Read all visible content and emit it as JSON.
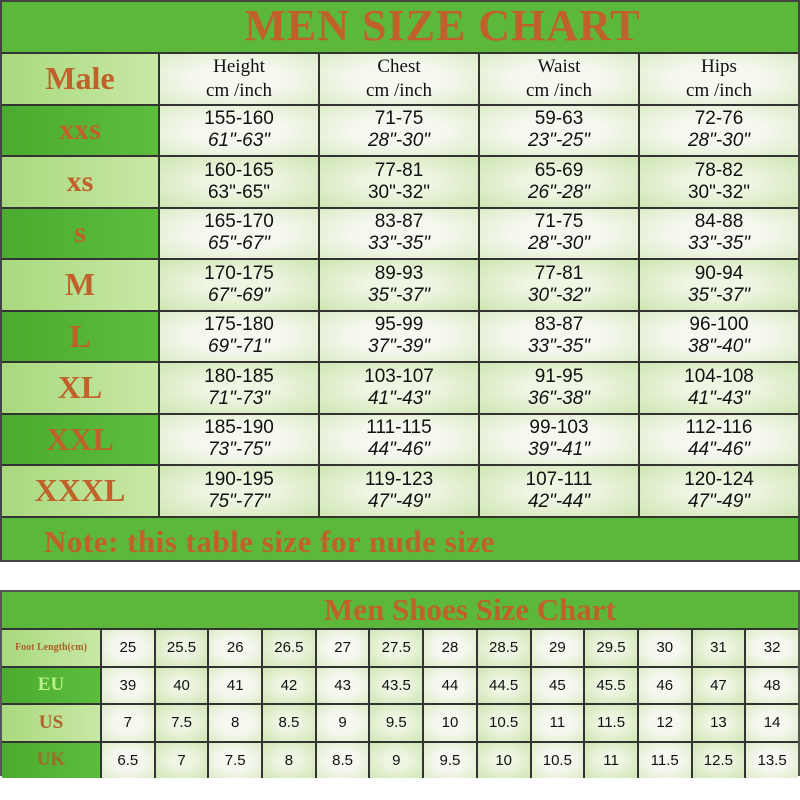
{
  "colors": {
    "title_bg": "#5cb83a",
    "title_text": "#c0612b",
    "label_dark": "#4aab2e",
    "label_light": "#b5de8a"
  },
  "size_chart": {
    "title": "MEN SIZE  CHART",
    "corner": "Male",
    "columns": [
      {
        "name": "Height",
        "unit": "cm /inch"
      },
      {
        "name": "Chest",
        "unit": "cm /inch"
      },
      {
        "name": "Waist",
        "unit": "cm /inch"
      },
      {
        "name": "Hips",
        "unit": "cm /inch"
      }
    ],
    "rows": [
      {
        "size": "xxs",
        "cells": [
          [
            "155-160",
            "61\"-63\""
          ],
          [
            "71-75",
            "28\"-30\""
          ],
          [
            "59-63",
            "23\"-25\""
          ],
          [
            "72-76",
            "28\"-30\""
          ]
        ]
      },
      {
        "size": "xs",
        "cells": [
          [
            "160-165",
            "63\"-65\""
          ],
          [
            "77-81",
            "30\"-32\""
          ],
          [
            "65-69",
            "26\"-28\""
          ],
          [
            "78-82",
            "30\"-32\""
          ]
        ]
      },
      {
        "size": "s",
        "cells": [
          [
            "165-170",
            "65\"-67\""
          ],
          [
            "83-87",
            "33\"-35\""
          ],
          [
            "71-75",
            "28\"-30\""
          ],
          [
            "84-88",
            "33\"-35\""
          ]
        ]
      },
      {
        "size": "M",
        "cells": [
          [
            "170-175",
            "67\"-69\""
          ],
          [
            "89-93",
            "35\"-37\""
          ],
          [
            "77-81",
            "30\"-32\""
          ],
          [
            "90-94",
            "35\"-37\""
          ]
        ]
      },
      {
        "size": "L",
        "cells": [
          [
            "175-180",
            "69\"-71\""
          ],
          [
            "95-99",
            "37\"-39\""
          ],
          [
            "83-87",
            "33\"-35\""
          ],
          [
            "96-100",
            "38\"-40\""
          ]
        ]
      },
      {
        "size": "XL",
        "cells": [
          [
            "180-185",
            "71\"-73\""
          ],
          [
            "103-107",
            "41\"-43\""
          ],
          [
            "91-95",
            "36\"-38\""
          ],
          [
            "104-108",
            "41\"-43\""
          ]
        ]
      },
      {
        "size": "XXL",
        "cells": [
          [
            "185-190",
            "73\"-75\""
          ],
          [
            "111-115",
            "44\"-46\""
          ],
          [
            "99-103",
            "39\"-41\""
          ],
          [
            "112-116",
            "44\"-46\""
          ]
        ]
      },
      {
        "size": "XXXL",
        "cells": [
          [
            "190-195",
            "75\"-77\""
          ],
          [
            "119-123",
            "47\"-49\""
          ],
          [
            "107-111",
            "42\"-44\""
          ],
          [
            "120-124",
            "47\"-49\""
          ]
        ]
      }
    ],
    "note": "Note: this table size for nude size"
  },
  "shoe_chart": {
    "title": "Men Shoes Size Chart",
    "rows": [
      {
        "label": "Foot Length(cm)",
        "values": [
          "25",
          "25.5",
          "26",
          "26.5",
          "27",
          "27.5",
          "28",
          "28.5",
          "29",
          "29.5",
          "30",
          "31",
          "32"
        ]
      },
      {
        "label": "EU",
        "values": [
          "39",
          "40",
          "41",
          "42",
          "43",
          "43.5",
          "44",
          "44.5",
          "45",
          "45.5",
          "46",
          "47",
          "48"
        ]
      },
      {
        "label": "US",
        "values": [
          "7",
          "7.5",
          "8",
          "8.5",
          "9",
          "9.5",
          "10",
          "10.5",
          "11",
          "11.5",
          "12",
          "13",
          "14"
        ]
      },
      {
        "label": "UK",
        "values": [
          "6.5",
          "7",
          "7.5",
          "8",
          "8.5",
          "9",
          "9.5",
          "10",
          "10.5",
          "11",
          "11.5",
          "12.5",
          "13.5"
        ]
      }
    ]
  }
}
